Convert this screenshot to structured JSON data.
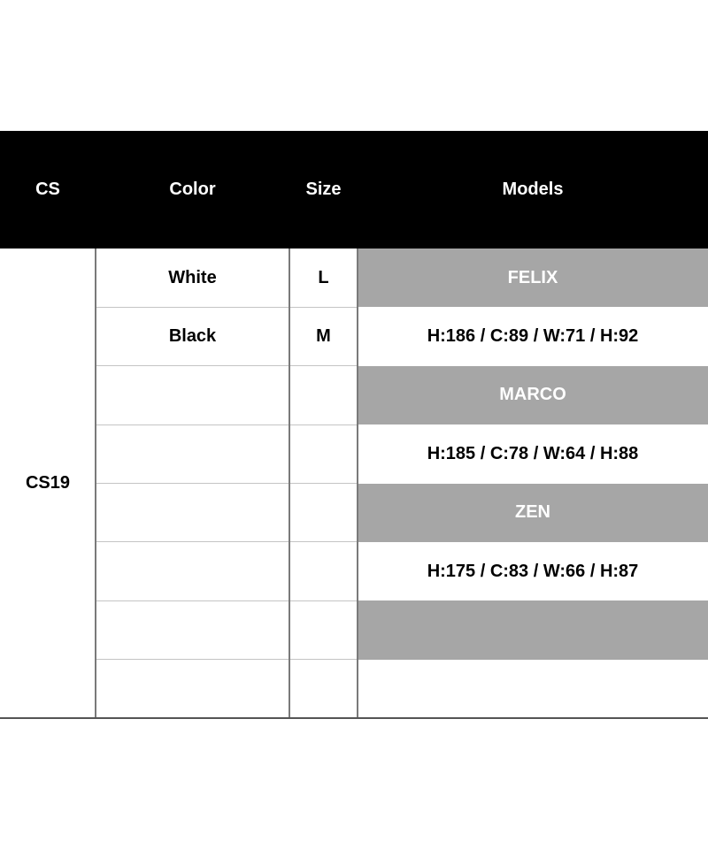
{
  "headers": {
    "cs": "CS",
    "color": "Color",
    "size": "Size",
    "models": "Models"
  },
  "cs_value": "CS19",
  "rows": [
    {
      "color": "White",
      "size": "L",
      "models": "FELIX",
      "shaded": true
    },
    {
      "color": "Black",
      "size": "M",
      "models": "H:186 / C:89 / W:71 / H:92",
      "shaded": false
    },
    {
      "color": "",
      "size": "",
      "models": "MARCO",
      "shaded": true
    },
    {
      "color": "",
      "size": "",
      "models": "H:185 / C:78 / W:64 / H:88",
      "shaded": false
    },
    {
      "color": "",
      "size": "",
      "models": "ZEN",
      "shaded": true
    },
    {
      "color": "",
      "size": "",
      "models": "H:175 / C:83 / W:66 / H:87",
      "shaded": false
    },
    {
      "color": "",
      "size": "",
      "models": "",
      "shaded": true
    },
    {
      "color": "",
      "size": "",
      "models": "",
      "shaded": false
    }
  ],
  "colors": {
    "header_bg": "#000000",
    "shaded_bg": "#a6a6a6"
  }
}
